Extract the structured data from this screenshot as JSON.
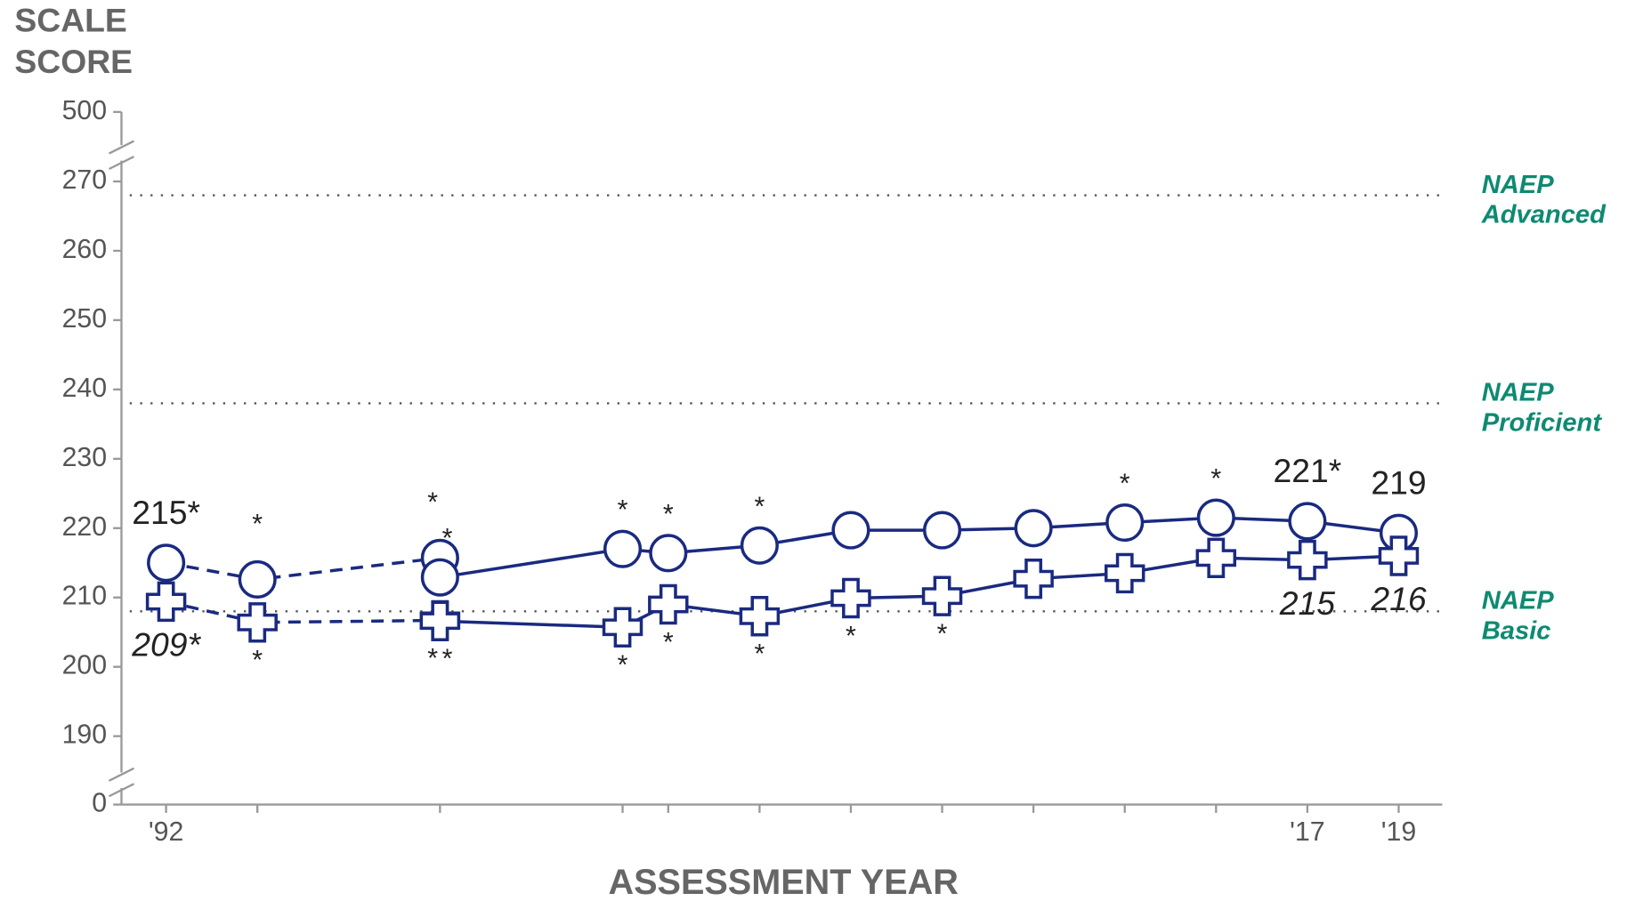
{
  "chart_data": {
    "type": "line",
    "y_title": [
      "SCALE",
      "SCORE"
    ],
    "x_title": "ASSESSMENT YEAR",
    "ylim": [
      0,
      500
    ],
    "y_break_range": [
      190,
      270
    ],
    "yticks": [
      0,
      190,
      200,
      210,
      220,
      230,
      240,
      250,
      260,
      270,
      500
    ],
    "xlim": [
      1991,
      2020
    ],
    "xticks": [
      {
        "value": 1992,
        "label": "'92"
      },
      {
        "value": 1994,
        "label": null
      },
      {
        "value": 1998,
        "label": null
      },
      {
        "value": 2002,
        "label": null
      },
      {
        "value": 2003,
        "label": null
      },
      {
        "value": 2005,
        "label": null
      },
      {
        "value": 2007,
        "label": null
      },
      {
        "value": 2009,
        "label": null
      },
      {
        "value": 2011,
        "label": null
      },
      {
        "value": 2013,
        "label": null
      },
      {
        "value": 2015,
        "label": null
      },
      {
        "value": 2017,
        "label": "'17"
      },
      {
        "value": 2019,
        "label": "'19"
      }
    ],
    "reference_lines": [
      {
        "value": 268,
        "label": [
          "NAEP",
          "Advanced"
        ]
      },
      {
        "value": 238,
        "label": [
          "NAEP",
          "Proficient"
        ]
      },
      {
        "value": 208,
        "label": [
          "NAEP",
          "Basic"
        ]
      }
    ],
    "reference_color": "#0e8a72",
    "series": [
      {
        "color": "#1a2a80",
        "marker": "circle",
        "dashed": true,
        "x": [
          1992,
          1994,
          1998
        ],
        "values": [
          215,
          212.6,
          215.7
        ],
        "value_labels": [
          "215*",
          null,
          null
        ],
        "flags": [
          null,
          "*",
          "*"
        ]
      },
      {
        "color": "#1a2a80",
        "marker": "circle",
        "dashed": false,
        "x": [
          1998,
          2002,
          2003,
          2005,
          2007,
          2009,
          2011,
          2013,
          2015,
          2017,
          2019
        ],
        "values": [
          212.9,
          217,
          216.4,
          217.5,
          219.7,
          219.7,
          220,
          220.8,
          221.5,
          221,
          219.3
        ],
        "value_labels": [
          null,
          null,
          null,
          null,
          null,
          null,
          null,
          null,
          null,
          "221*",
          "219"
        ],
        "flags": [
          "*",
          "*",
          "*",
          "*",
          null,
          null,
          null,
          "*",
          "*",
          null,
          null
        ]
      },
      {
        "color": "#1a2a80",
        "marker": "plus",
        "dashed": true,
        "x": [
          1992,
          1994,
          1998
        ],
        "values": [
          209.4,
          206.4,
          206.7
        ],
        "value_labels": [
          "209*",
          null,
          null
        ],
        "flags": [
          null,
          "*",
          "*"
        ]
      },
      {
        "color": "#1a2a80",
        "marker": "plus",
        "dashed": false,
        "x": [
          1998,
          2002,
          2003,
          2005,
          2007,
          2009,
          2011,
          2013,
          2015,
          2017,
          2019
        ],
        "values": [
          206.6,
          205.7,
          209,
          207.3,
          209.9,
          210.2,
          212.7,
          213.5,
          215.7,
          215.4,
          216
        ],
        "value_labels": [
          null,
          null,
          null,
          null,
          null,
          null,
          null,
          null,
          null,
          "215",
          "216"
        ],
        "flags": [
          "*",
          "*",
          "*",
          "*",
          "*",
          "*",
          null,
          null,
          null,
          null,
          null
        ]
      }
    ]
  }
}
